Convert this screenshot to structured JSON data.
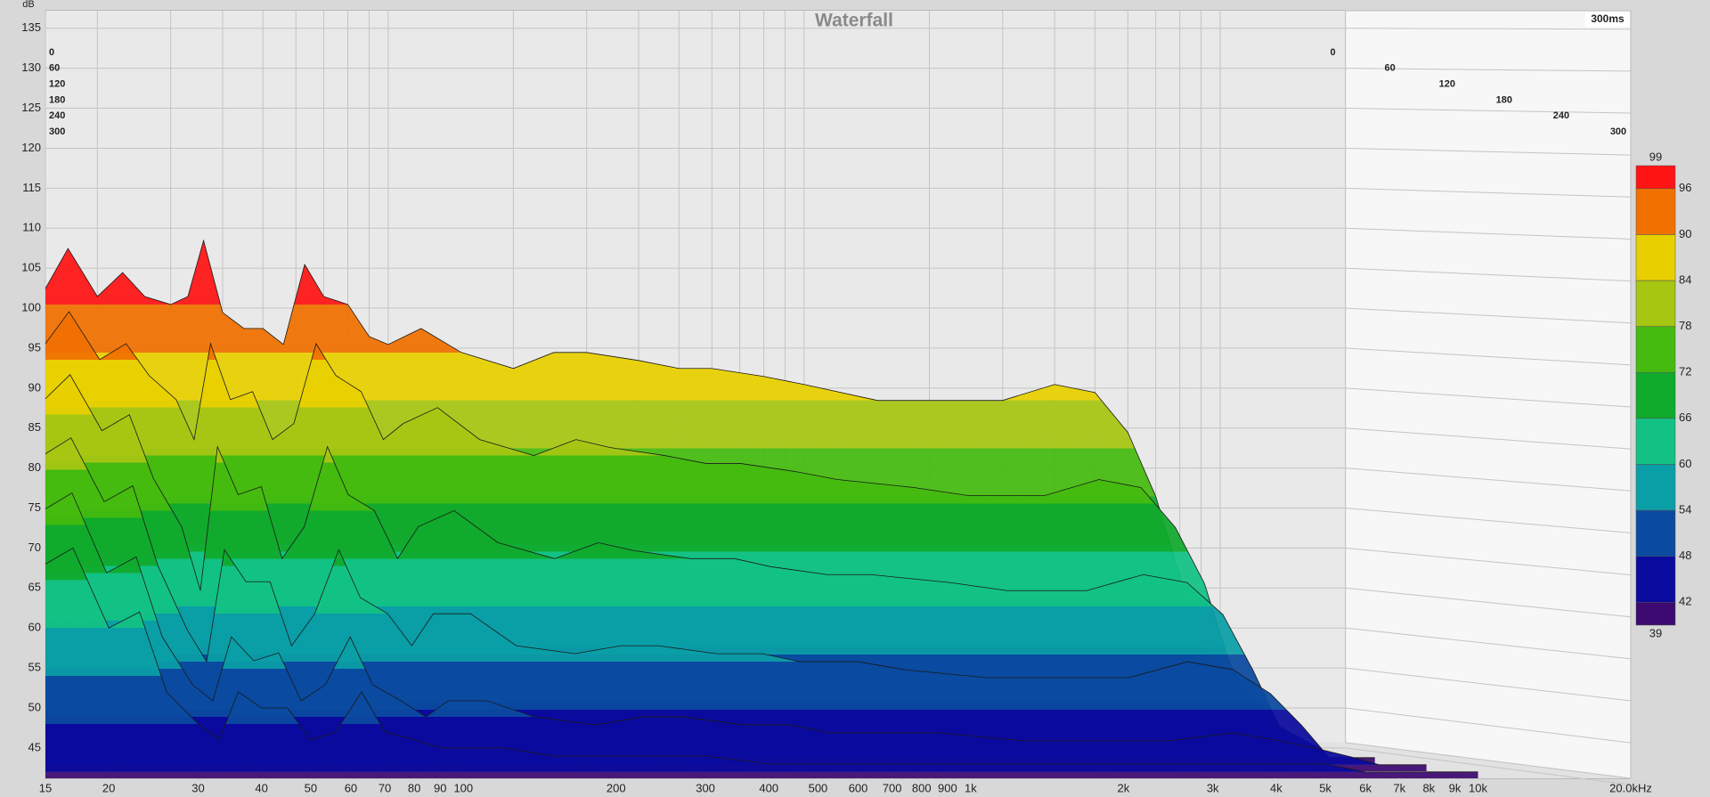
{
  "chart_data": {
    "type": "waterfall",
    "title": "Waterfall",
    "y_label": "dB",
    "time_end_label": "300ms",
    "xscale": "log",
    "xlim": [
      15,
      20000
    ],
    "xticks": [
      15,
      20,
      30,
      40,
      50,
      60,
      70,
      80,
      90,
      100,
      200,
      300,
      400,
      500,
      600,
      700,
      800,
      900,
      {
        "value": 1000,
        "label": "1k"
      },
      {
        "value": 2000,
        "label": "2k"
      },
      {
        "value": 3000,
        "label": "3k"
      },
      {
        "value": 4000,
        "label": "4k"
      },
      {
        "value": 5000,
        "label": "5k"
      },
      {
        "value": 6000,
        "label": "6k"
      },
      {
        "value": 7000,
        "label": "7k"
      },
      {
        "value": 8000,
        "label": "8k"
      },
      {
        "value": 9000,
        "label": "9k"
      },
      {
        "value": 10000,
        "label": "10k"
      },
      {
        "value": 20000,
        "label": "20.0kHz"
      }
    ],
    "ylim": [
      41.2,
      137.2
    ],
    "yticks": [
      45,
      50,
      55,
      60,
      65,
      70,
      75,
      80,
      85,
      90,
      95,
      100,
      105,
      110,
      115,
      120,
      125,
      130,
      135
    ],
    "tlim": [
      0,
      300
    ],
    "grid": true,
    "x": [
      15,
      17,
      20,
      23,
      26,
      30,
      33,
      36,
      40,
      45,
      50,
      56,
      63,
      70,
      80,
      90,
      100,
      120,
      150,
      200,
      250,
      300,
      400,
      500,
      600,
      800,
      1000,
      1500,
      2000,
      3000,
      4000,
      5000,
      6000,
      7000,
      8000,
      10000
    ],
    "slices": [
      {
        "time": 0,
        "values": [
          98,
          103,
          97,
          100,
          97,
          96,
          97,
          104,
          95,
          93,
          93,
          91,
          101,
          97,
          96,
          92,
          91,
          93,
          90,
          88,
          90,
          90,
          89,
          88,
          88,
          87,
          86,
          84,
          84,
          84,
          86,
          85,
          80,
          72,
          62,
          48
        ]
      },
      {
        "time": 60,
        "values": [
          92,
          96,
          90,
          92,
          88,
          85,
          80,
          92,
          85,
          86,
          80,
          82,
          92,
          88,
          86,
          80,
          82,
          84,
          80,
          78,
          80,
          79,
          78,
          77,
          77,
          76,
          75,
          74,
          73,
          73,
          75,
          74,
          69,
          62,
          52,
          43
        ]
      },
      {
        "time": 120,
        "values": [
          86,
          89,
          82,
          84,
          76,
          70,
          62,
          80,
          74,
          75,
          66,
          70,
          80,
          74,
          72,
          66,
          70,
          72,
          68,
          66,
          68,
          67,
          66,
          66,
          65,
          64,
          64,
          63,
          62,
          62,
          64,
          63,
          59,
          52,
          45,
          42
        ]
      },
      {
        "time": 180,
        "values": [
          80,
          82,
          74,
          76,
          66,
          58,
          54,
          68,
          64,
          64,
          56,
          60,
          68,
          62,
          60,
          56,
          60,
          60,
          56,
          55,
          56,
          56,
          55,
          55,
          54,
          54,
          53,
          52,
          52,
          52,
          54,
          53,
          50,
          46,
          42,
          42
        ]
      },
      {
        "time": 240,
        "values": [
          74,
          76,
          66,
          68,
          58,
          52,
          50,
          58,
          55,
          56,
          50,
          52,
          58,
          52,
          50,
          48,
          50,
          50,
          48,
          47,
          48,
          48,
          47,
          47,
          46,
          46,
          46,
          45,
          45,
          45,
          46,
          45,
          44,
          43,
          42,
          42
        ]
      },
      {
        "time": 300,
        "values": [
          68,
          70,
          60,
          62,
          52,
          48,
          46,
          52,
          50,
          50,
          46,
          47,
          52,
          47,
          46,
          45,
          45,
          45,
          44,
          44,
          44,
          44,
          43,
          43,
          43,
          43,
          43,
          43,
          43,
          43,
          43,
          43,
          42,
          42,
          42,
          42
        ]
      }
    ],
    "colorbar": {
      "levels": [
        39,
        42,
        48,
        54,
        60,
        66,
        72,
        78,
        84,
        90,
        96,
        99
      ],
      "colors": [
        "#3c0a70",
        "#0a0a9e",
        "#0a4aa0",
        "#0a9ea6",
        "#12c284",
        "#10aa2c",
        "#44bb0e",
        "#a6c612",
        "#e8d000",
        "#f07000",
        "#ff1414"
      ]
    }
  }
}
